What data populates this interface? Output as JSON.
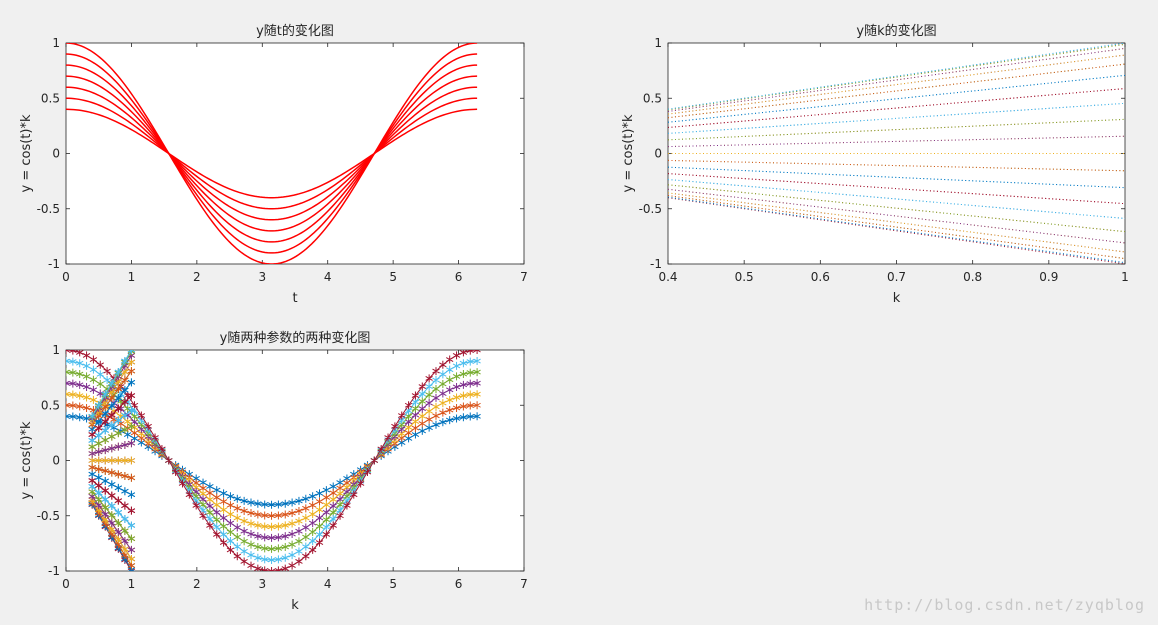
{
  "colors": {
    "background": "#f0f0f0",
    "axes_bg": "#ffffff",
    "axis_line": "#262626",
    "red": "#ff0000",
    "palette": [
      "#0072bd",
      "#d95319",
      "#edb120",
      "#7e2f8e",
      "#77ac30",
      "#4dbeee",
      "#a2142f"
    ]
  },
  "watermark": "http://blog.csdn.net/zyqblog",
  "chart_data": [
    {
      "id": "plot1",
      "type": "line",
      "title": "y随t的变化图",
      "xlabel": "t",
      "ylabel": "y = cos(t)*k",
      "xlim": [
        0,
        7
      ],
      "ylim": [
        -1,
        1
      ],
      "xticks": [
        0,
        1,
        2,
        3,
        4,
        5,
        6,
        7
      ],
      "yticks": [
        -1,
        -0.5,
        0,
        0.5,
        1
      ],
      "xticklabels": [
        "0",
        "1",
        "2",
        "3",
        "4",
        "5",
        "6",
        "7"
      ],
      "yticklabels": [
        "-1",
        "-0.5",
        "0",
        "0.5",
        "1"
      ],
      "function": "y = cos(t) * k",
      "t_range": [
        0,
        6.2832
      ],
      "k_values": [
        0.4,
        0.5,
        0.6,
        0.7,
        0.8,
        0.9,
        1.0
      ],
      "line_color": "#ff0000",
      "marker": "none",
      "grid": false
    },
    {
      "id": "plot2",
      "type": "line",
      "title": "y随k的变化图",
      "xlabel": "k",
      "ylabel": "y = cos(t)*k",
      "xlim": [
        0.4,
        1
      ],
      "ylim": [
        -1,
        1
      ],
      "xticks": [
        0.4,
        0.5,
        0.6,
        0.7,
        0.8,
        0.9,
        1
      ],
      "yticks": [
        -1,
        -0.5,
        0,
        0.5,
        1
      ],
      "xticklabels": [
        "0.4",
        "0.5",
        "0.6",
        "0.7",
        "0.8",
        "0.9",
        "1"
      ],
      "yticklabels": [
        "-1",
        "-0.5",
        "0",
        "0.5",
        "1"
      ],
      "function": "y = cos(t) * k",
      "k_range": [
        0.4,
        1.0
      ],
      "t_values_count": 41,
      "t_range": [
        0,
        6.2832
      ],
      "line_style": "dotted",
      "grid": false
    },
    {
      "id": "plot3",
      "type": "line",
      "title": "y随两种参数的两种变化图",
      "xlabel": "k",
      "ylabel": "y = cos(t)*k",
      "xlim": [
        0,
        7
      ],
      "ylim": [
        -1,
        1
      ],
      "xticks": [
        0,
        1,
        2,
        3,
        4,
        5,
        6,
        7
      ],
      "yticks": [
        -1,
        -0.5,
        0,
        0.5,
        1
      ],
      "xticklabels": [
        "0",
        "1",
        "2",
        "3",
        "4",
        "5",
        "6",
        "7"
      ],
      "yticklabels": [
        "-1",
        "-0.5",
        "0",
        "0.5",
        "1"
      ],
      "function": "y = cos(t) * k",
      "t_range": [
        0,
        6.2832
      ],
      "k_values": [
        0.4,
        0.5,
        0.6,
        0.7,
        0.8,
        0.9,
        1.0
      ],
      "k_range": [
        0.4,
        1.0
      ],
      "t_values_count": 41,
      "marker": "*",
      "grid": false
    }
  ]
}
